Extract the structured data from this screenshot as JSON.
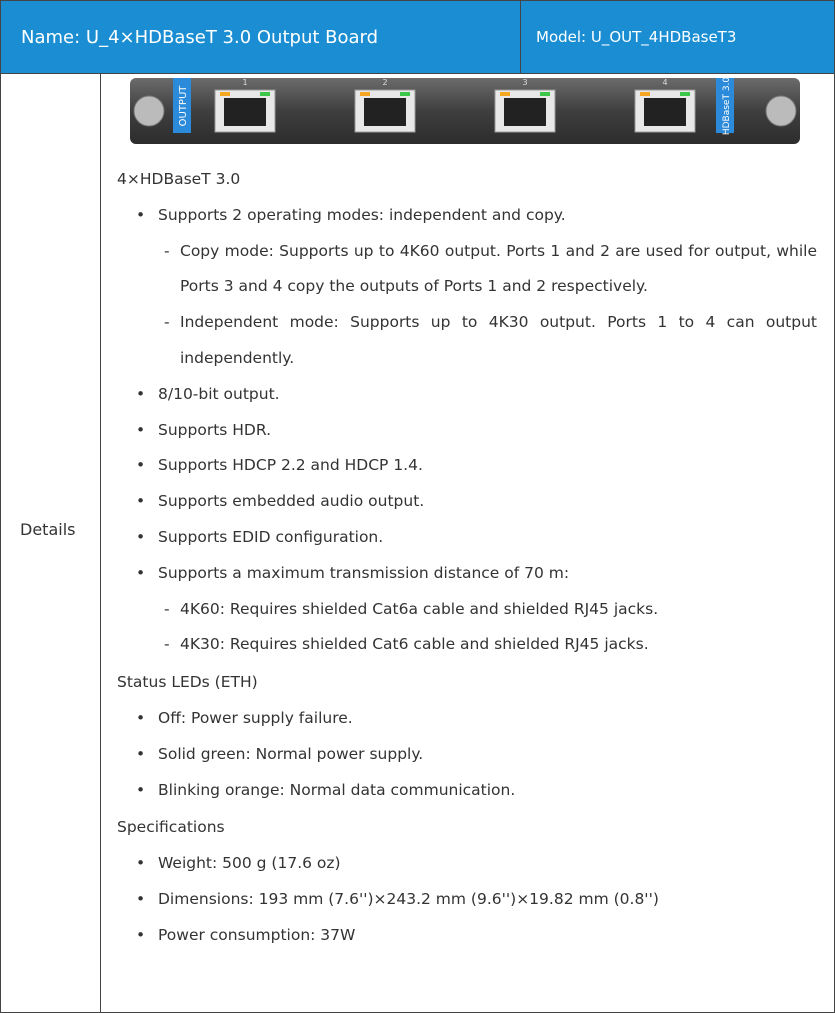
{
  "header": {
    "name": "Name: U_4×HDBaseT 3.0 Output Board",
    "model": "Model: U_OUT_4HDBaseT3"
  },
  "row_label": "Details",
  "board": {
    "left_label": "OUTPUT",
    "right_label": "HDBaseT 3.0",
    "ports": [
      "1",
      "2",
      "3",
      "4"
    ]
  },
  "sections": [
    {
      "heading": "4×HDBaseT 3.0",
      "items": [
        {
          "text": "Supports 2 operating modes: independent and copy.",
          "subitems": [
            "Copy mode: Supports up to 4K60 output. Ports 1 and 2 are used for output, while Ports 3 and 4 copy the outputs of Ports 1 and 2 respectively.",
            "Independent mode: Supports up to 4K30 output. Ports 1 to 4 can output independently."
          ]
        },
        {
          "text": "8/10-bit output."
        },
        {
          "text": "Supports HDR."
        },
        {
          "text": "Supports HDCP 2.2 and HDCP 1.4."
        },
        {
          "text": "Supports embedded audio output."
        },
        {
          "text": "Supports EDID configuration."
        },
        {
          "text": "Supports a maximum transmission distance of 70 m:",
          "subitems": [
            "4K60: Requires shielded Cat6a cable and shielded RJ45 jacks.",
            "4K30: Requires shielded Cat6 cable and shielded RJ45 jacks."
          ]
        }
      ]
    },
    {
      "heading": "Status LEDs (ETH)",
      "items": [
        {
          "text": "Off: Power supply failure."
        },
        {
          "text": "Solid green: Normal power supply."
        },
        {
          "text": "Blinking orange: Normal data communication."
        }
      ]
    },
    {
      "heading": "Specifications",
      "items": [
        {
          "text": "Weight: 500 g (17.6 oz)"
        },
        {
          "text": "Dimensions: 193 mm (7.6'')×243.2 mm (9.6'')×19.82 mm (0.8'')"
        },
        {
          "text": "Power consumption: 37W"
        }
      ]
    }
  ]
}
